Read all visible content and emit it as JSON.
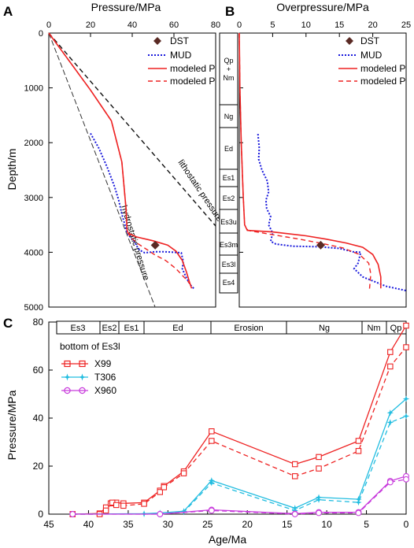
{
  "panels": {
    "A": {
      "letter": "A",
      "xlabel": "Pressure/MPa",
      "ylabel": "Depth/m",
      "xticks": [
        "0",
        "20",
        "40",
        "60",
        "80"
      ],
      "yticks": [
        "0",
        "1000",
        "2000",
        "3000",
        "4000",
        "5000"
      ],
      "annot_lithostatic": "lithostatic pressure",
      "annot_hydrostatic": "hydrostatic pressure",
      "legend": [
        "DST",
        "MUD",
        "modeled P",
        "modeled P"
      ]
    },
    "B": {
      "letter": "B",
      "xlabel": "Overpressure/MPa",
      "xticks": [
        "0",
        "5",
        "10",
        "15",
        "20",
        "25"
      ],
      "legend": [
        "DST",
        "MUD",
        "modeled P",
        "modeled P"
      ]
    },
    "C": {
      "letter": "C",
      "xlabel": "Age/Ma",
      "ylabel": "Pressure/MPa",
      "xticks": [
        "45",
        "40",
        "35",
        "30",
        "25",
        "20",
        "15",
        "10",
        "5",
        "0"
      ],
      "yticks": [
        "0",
        "20",
        "40",
        "60",
        "80"
      ],
      "legend_title": "bottom of Es3l",
      "legend": [
        "X99",
        "T306",
        "X960"
      ]
    }
  },
  "strat_column": [
    "Qp+Nm",
    "Ng",
    "Ed",
    "Es1",
    "Es2",
    "Es3u",
    "Es3m",
    "Es3l",
    "Es4"
  ],
  "strat_column_qp": [
    "Qp",
    "+",
    "Nm"
  ],
  "timeline": [
    "Es3",
    "Es2",
    "Es1",
    "Ed",
    "Erosion",
    "Ng",
    "Nm",
    "Qp"
  ],
  "colors": {
    "red": "#ee2222",
    "blue": "#1a1adc",
    "cyan": "#22bde0",
    "magenta": "#c83cdc",
    "dst": "#5a2a24"
  },
  "chart_data": [
    {
      "panel": "A",
      "type": "line",
      "xlim": [
        0,
        80
      ],
      "ylim": [
        5000,
        0
      ],
      "legend_position": "top-right",
      "series": [
        {
          "name": "DST",
          "marker": "diamond",
          "points": [
            [
              51,
              3870
            ]
          ]
        },
        {
          "name": "MUD",
          "style": "dotted",
          "points": [
            [
              20,
              1830
            ],
            [
              24,
              2100
            ],
            [
              28,
              2450
            ],
            [
              31.5,
              2800
            ],
            [
              33.5,
              3050
            ],
            [
              35,
              3300
            ],
            [
              36.5,
              3500
            ],
            [
              37.5,
              3640
            ],
            [
              39,
              3720
            ],
            [
              41,
              3800
            ],
            [
              42,
              3880
            ],
            [
              43.5,
              3960
            ],
            [
              46,
              4010
            ],
            [
              51,
              3990
            ],
            [
              55,
              3990
            ],
            [
              60,
              4000
            ],
            [
              63.5,
              4010
            ],
            [
              64.5,
              4170
            ],
            [
              64,
              4300
            ],
            [
              66,
              4470
            ],
            [
              68,
              4600
            ],
            [
              70,
              4680
            ]
          ]
        },
        {
          "name": "modeled P",
          "style": "solid",
          "points": [
            [
              0,
              0
            ],
            [
              10,
              520
            ],
            [
              20,
              1040
            ],
            [
              30,
              1600
            ],
            [
              35,
              2350
            ],
            [
              37,
              3200
            ],
            [
              37.5,
              3590
            ],
            [
              38,
              3650
            ],
            [
              42,
              3720
            ],
            [
              50,
              3790
            ],
            [
              57,
              3870
            ],
            [
              61,
              3980
            ],
            [
              64,
              4150
            ],
            [
              66,
              4360
            ],
            [
              67.5,
              4550
            ],
            [
              68.5,
              4660
            ]
          ]
        },
        {
          "name": "modeled P",
          "style": "dashed",
          "points": [
            [
              0,
              0
            ],
            [
              10,
              520
            ],
            [
              20,
              1040
            ],
            [
              30,
              1600
            ],
            [
              35,
              2350
            ],
            [
              37,
              3200
            ],
            [
              37.5,
              3600
            ],
            [
              39,
              3720
            ],
            [
              43,
              3850
            ],
            [
              47,
              3950
            ],
            [
              51,
              4050
            ],
            [
              56,
              4150
            ],
            [
              61,
              4300
            ],
            [
              66,
              4500
            ],
            [
              69,
              4640
            ]
          ]
        },
        {
          "name": "lithostatic pressure",
          "style": "dashed",
          "points": [
            [
              0,
              0
            ],
            [
              80,
              3520
            ]
          ]
        },
        {
          "name": "hydrostatic pressure",
          "style": "dashed",
          "points": [
            [
              0,
              0
            ],
            [
              51,
              5000
            ]
          ]
        }
      ]
    },
    {
      "panel": "B",
      "type": "line",
      "xlim": [
        0,
        25
      ],
      "ylim": [
        5000,
        0
      ],
      "legend_position": "top-right",
      "series": [
        {
          "name": "DST",
          "marker": "diamond",
          "points": [
            [
              12.2,
              3870
            ]
          ]
        },
        {
          "name": "MUD",
          "style": "dotted",
          "points": [
            [
              2.8,
              1840
            ],
            [
              3,
              2100
            ],
            [
              2.9,
              2300
            ],
            [
              3.4,
              2500
            ],
            [
              4.2,
              2700
            ],
            [
              4.4,
              2900
            ],
            [
              4,
              3050
            ],
            [
              4.1,
              3200
            ],
            [
              4.7,
              3350
            ],
            [
              4.4,
              3500
            ],
            [
              5,
              3650
            ],
            [
              4.7,
              3800
            ],
            [
              5.5,
              3850
            ],
            [
              8,
              3890
            ],
            [
              12,
              3900
            ],
            [
              15,
              3930
            ],
            [
              17,
              3990
            ],
            [
              18.2,
              4000
            ],
            [
              17.8,
              4200
            ],
            [
              17.2,
              4300
            ],
            [
              18.5,
              4450
            ],
            [
              22,
              4620
            ],
            [
              25,
              4700
            ]
          ]
        },
        {
          "name": "modeled P",
          "style": "solid",
          "points": [
            [
              0,
              0
            ],
            [
              0.1,
              1000
            ],
            [
              0.3,
              2000
            ],
            [
              0.6,
              3000
            ],
            [
              0.8,
              3500
            ],
            [
              1.2,
              3600
            ],
            [
              5,
              3630
            ],
            [
              10,
              3700
            ],
            [
              13,
              3760
            ],
            [
              16,
              3830
            ],
            [
              18.5,
              3910
            ],
            [
              20,
              4040
            ],
            [
              20.8,
              4220
            ],
            [
              21.2,
              4450
            ],
            [
              21.2,
              4660
            ]
          ]
        },
        {
          "name": "modeled P",
          "style": "dashed",
          "points": [
            [
              0,
              0
            ],
            [
              0.1,
              1000
            ],
            [
              0.3,
              2000
            ],
            [
              0.6,
              3000
            ],
            [
              0.8,
              3500
            ],
            [
              1.3,
              3600
            ],
            [
              5,
              3680
            ],
            [
              9,
              3760
            ],
            [
              12.5,
              3840
            ],
            [
              15.5,
              3920
            ],
            [
              18,
              4040
            ],
            [
              19.4,
              4200
            ],
            [
              19.7,
              4400
            ],
            [
              19.5,
              4680
            ]
          ]
        }
      ]
    },
    {
      "panel": "C",
      "type": "line",
      "xlim": [
        45,
        0
      ],
      "ylim": [
        0,
        80
      ],
      "legend_position": "top-left",
      "series": [
        {
          "name": "X99",
          "marker": "square",
          "style": "solid",
          "points": [
            [
              42,
              0
            ],
            [
              38.6,
              0.3
            ],
            [
              37.8,
              2.8
            ],
            [
              37.2,
              4.5
            ],
            [
              36.5,
              4.8
            ],
            [
              35.6,
              4.5
            ],
            [
              33,
              4.8
            ],
            [
              31,
              9.8
            ],
            [
              30.5,
              11.7
            ],
            [
              28,
              17.8
            ],
            [
              24.5,
              34.5
            ],
            [
              14,
              20.8
            ],
            [
              11,
              23.8
            ],
            [
              6,
              30.5
            ],
            [
              2,
              67.5
            ],
            [
              0,
              78.5
            ]
          ]
        },
        {
          "name": "X99",
          "marker": "square",
          "style": "dashed",
          "points": [
            [
              42,
              0
            ],
            [
              38.6,
              0
            ],
            [
              37.8,
              1.5
            ],
            [
              37,
              4.8
            ],
            [
              36.5,
              3.8
            ],
            [
              35.6,
              3.5
            ],
            [
              33,
              4.3
            ],
            [
              31,
              9.2
            ],
            [
              30.5,
              11.2
            ],
            [
              28,
              17
            ],
            [
              24.5,
              30.5
            ],
            [
              14,
              15.8
            ],
            [
              11,
              19
            ],
            [
              6,
              26.3
            ],
            [
              2,
              61.5
            ],
            [
              0,
              69.5
            ]
          ]
        },
        {
          "name": "T306",
          "marker": "star",
          "style": "solid",
          "points": [
            [
              42,
              0
            ],
            [
              33,
              0.2
            ],
            [
              31,
              0.5
            ],
            [
              28,
              1.2
            ],
            [
              24.5,
              14
            ],
            [
              14,
              2.5
            ],
            [
              11,
              7
            ],
            [
              6,
              6.2
            ],
            [
              2,
              42.2
            ],
            [
              0,
              48
            ]
          ]
        },
        {
          "name": "T306",
          "marker": "star",
          "style": "dashed",
          "points": [
            [
              42,
              0
            ],
            [
              33,
              0.1
            ],
            [
              31,
              0.3
            ],
            [
              28,
              0.9
            ],
            [
              24.5,
              13
            ],
            [
              14,
              1.5
            ],
            [
              11,
              6
            ],
            [
              6,
              4.9
            ],
            [
              2,
              38.2
            ],
            [
              0,
              40.8
            ]
          ]
        },
        {
          "name": "X960",
          "marker": "circle",
          "style": "solid",
          "points": [
            [
              42,
              0
            ],
            [
              31,
              0
            ],
            [
              24.5,
              1.8
            ],
            [
              14,
              0.2
            ],
            [
              11,
              0.8
            ],
            [
              6,
              0.8
            ],
            [
              2,
              13.8
            ],
            [
              0,
              15.8
            ]
          ]
        },
        {
          "name": "X960",
          "marker": "circle",
          "style": "dashed",
          "points": [
            [
              42,
              0
            ],
            [
              31,
              0
            ],
            [
              24.5,
              1.5
            ],
            [
              14,
              0
            ],
            [
              11,
              0.5
            ],
            [
              6,
              0.5
            ],
            [
              2,
              13.3
            ],
            [
              0,
              14.5
            ]
          ]
        }
      ]
    }
  ]
}
